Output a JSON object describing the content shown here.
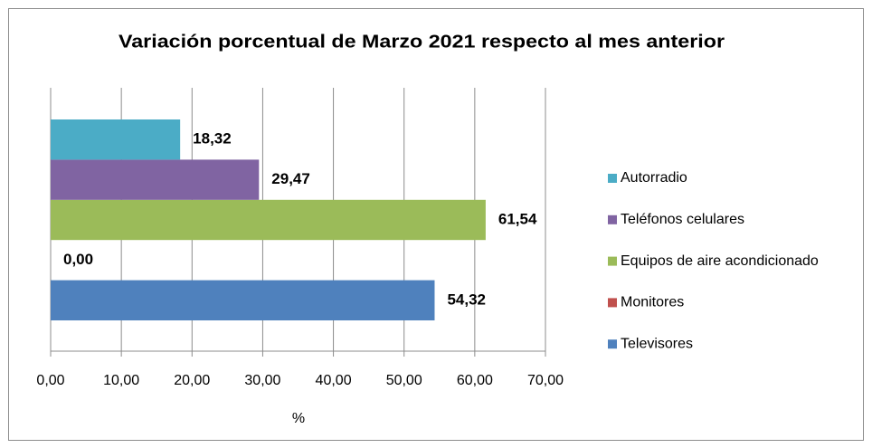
{
  "chart_data": {
    "type": "bar",
    "orientation": "horizontal",
    "title": "Variación porcentual de Marzo 2021 respecto al mes anterior",
    "x_label": "%",
    "categories": [
      null
    ],
    "series": [
      {
        "name": "Televisores",
        "color": "#4f81bd",
        "values": [
          54.32
        ],
        "value_labels": [
          "54,32"
        ]
      },
      {
        "name": "Monitores",
        "color": "#c0504d",
        "values": [
          0.0
        ],
        "value_labels": [
          "0,00"
        ]
      },
      {
        "name": "Equipos de aire acondicionado",
        "color": "#9bbb59",
        "values": [
          61.54
        ],
        "value_labels": [
          "61,54"
        ]
      },
      {
        "name": "Teléfonos celulares",
        "color": "#8064a2",
        "values": [
          29.47
        ],
        "value_labels": [
          "29,47"
        ]
      },
      {
        "name": "Autorradio",
        "color": "#4bacc6",
        "values": [
          18.32
        ],
        "value_labels": [
          "18,32"
        ]
      }
    ],
    "xlim": [
      0,
      70
    ],
    "xticks": [
      {
        "value": 0,
        "label": "0,00"
      },
      {
        "value": 10,
        "label": "10,00"
      },
      {
        "value": 20,
        "label": "20,00"
      },
      {
        "value": 30,
        "label": "30,00"
      },
      {
        "value": 40,
        "label": "40,00"
      },
      {
        "value": 50,
        "label": "50,00"
      },
      {
        "value": 60,
        "label": "60,00"
      },
      {
        "value": 70,
        "label": "70,00"
      }
    ],
    "grid": true,
    "legend": "right"
  }
}
